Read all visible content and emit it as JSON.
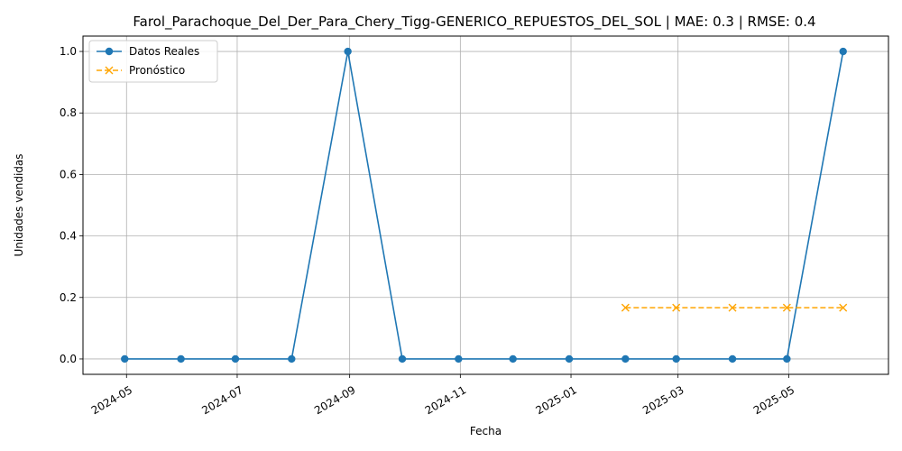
{
  "chart_data": {
    "type": "line",
    "title": "Farol_Parachoque_Del_Der_Para_Chery_Tigg-GENERICO_REPUESTOS_DEL_SOL | MAE: 0.3 | RMSE: 0.4",
    "xlabel": "Fecha",
    "ylabel": "Unidades vendidas",
    "xlim": [
      "2024-04-07",
      "2025-06-25"
    ],
    "ylim": [
      -0.05,
      1.05
    ],
    "x_ticks": [
      "2024-05-01",
      "2024-07-01",
      "2024-09-01",
      "2024-11-01",
      "2025-01-01",
      "2025-03-01",
      "2025-05-01"
    ],
    "x_tick_labels": [
      "2024-05",
      "2024-07",
      "2024-09",
      "2024-11",
      "2025-01",
      "2025-03",
      "2025-05"
    ],
    "y_ticks": [
      0.0,
      0.2,
      0.4,
      0.6,
      0.8,
      1.0
    ],
    "y_tick_labels": [
      "0.0",
      "0.2",
      "0.4",
      "0.6",
      "0.8",
      "1.0"
    ],
    "grid": true,
    "legend_position": "top-left",
    "series": [
      {
        "name": "Datos Reales",
        "color": "#1f77b4",
        "marker": "circle",
        "line_style": "solid",
        "x": [
          "2024-04-30",
          "2024-05-31",
          "2024-06-30",
          "2024-07-31",
          "2024-08-31",
          "2024-09-30",
          "2024-10-31",
          "2024-11-30",
          "2024-12-31",
          "2025-01-31",
          "2025-02-28",
          "2025-03-31",
          "2025-04-30",
          "2025-05-31"
        ],
        "y": [
          0,
          0,
          0,
          0,
          1,
          0,
          0,
          0,
          0,
          0,
          0,
          0,
          0,
          1
        ]
      },
      {
        "name": "Pronóstico",
        "color": "#ffa500",
        "marker": "x",
        "line_style": "dashed",
        "x": [
          "2025-01-31",
          "2025-02-28",
          "2025-03-31",
          "2025-04-30",
          "2025-05-31"
        ],
        "y": [
          0.1667,
          0.1667,
          0.1667,
          0.1667,
          0.1667
        ]
      }
    ]
  }
}
